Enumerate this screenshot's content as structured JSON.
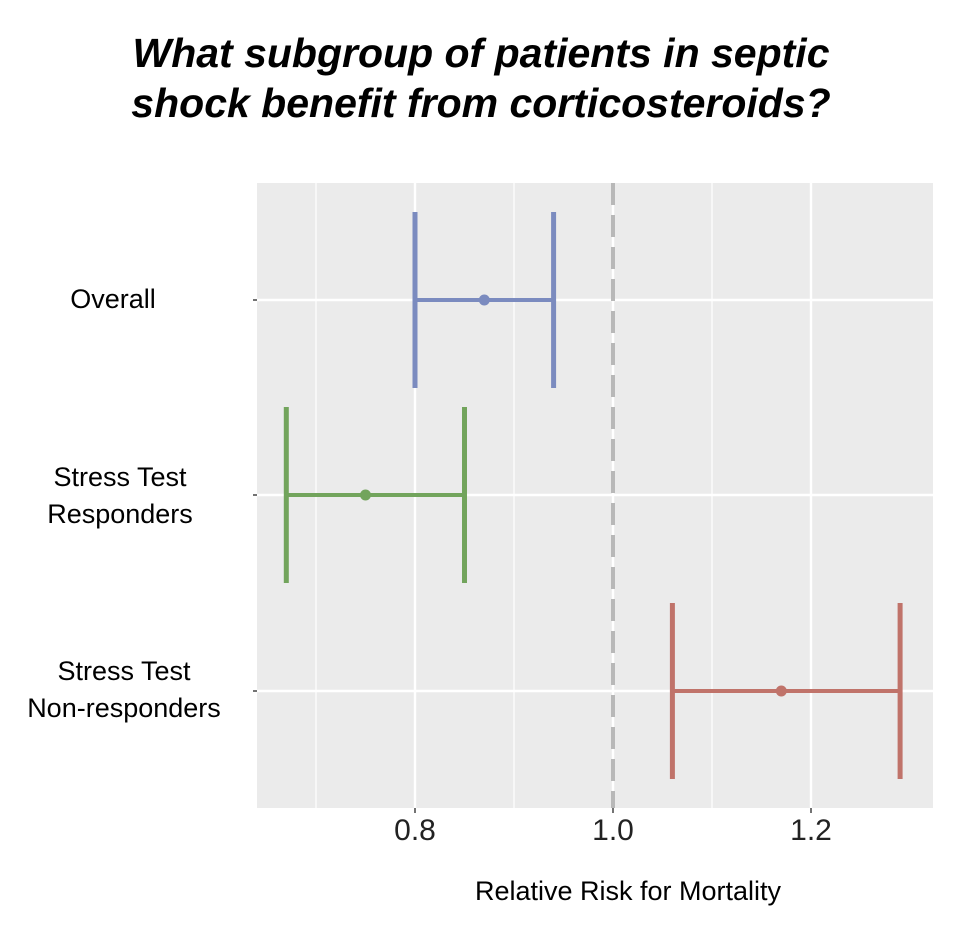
{
  "title_lines": [
    "What subgroup of patients in septic",
    "shock benefit from corticosteroids?"
  ],
  "chart_data": {
    "type": "forest",
    "title": "What subgroup of patients in septic shock benefit from corticosteroids?",
    "xlabel": "Relative Risk for Mortality",
    "ylabel": "",
    "xlim": [
      0.64,
      1.3
    ],
    "xticks": [
      0.8,
      1.0,
      1.2
    ],
    "xtick_labels": [
      "0.8",
      "1.0",
      "1.2"
    ],
    "reference_line": 1.0,
    "grid": true,
    "categories": [
      {
        "label_lines": [
          "Overall"
        ],
        "estimate": 0.87,
        "ci_low": 0.8,
        "ci_high": 0.94,
        "color": "#7b8bbf"
      },
      {
        "label_lines": [
          "Stress Test",
          "Responders"
        ],
        "estimate": 0.75,
        "ci_low": 0.67,
        "ci_high": 0.85,
        "color": "#72a45c"
      },
      {
        "label_lines": [
          "Stress Test",
          "Non-responders"
        ],
        "estimate": 1.17,
        "ci_low": 1.06,
        "ci_high": 1.29,
        "color": "#c0736a"
      }
    ]
  },
  "colors": {
    "panel_background": "#ebebeb",
    "gridline": "#ffffff",
    "reference_line": "#b8b8b8"
  }
}
